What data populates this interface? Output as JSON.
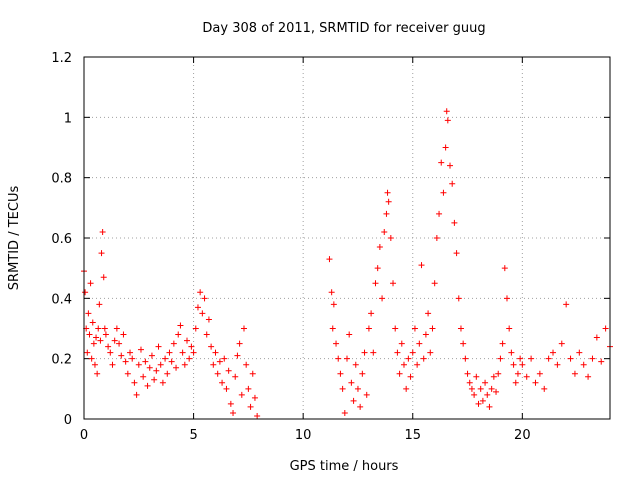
{
  "chart_data": {
    "type": "scatter",
    "title": "Day 308 of 2011, SRMTID for receiver guug",
    "xlabel": "GPS time / hours",
    "ylabel": "SRMTID / TECUs",
    "xlim": [
      0,
      24
    ],
    "ylim": [
      0,
      1.2
    ],
    "x_ticks": [
      0,
      5,
      10,
      15,
      20
    ],
    "x_tick_labels": [
      "0",
      "5",
      "10",
      "15",
      "20"
    ],
    "y_ticks": [
      0,
      0.2,
      0.4,
      0.6,
      0.8,
      1.0,
      1.2
    ],
    "y_tick_labels": [
      "0",
      "0.2",
      "0.4",
      "0.6",
      "0.8",
      "1",
      "1.2"
    ],
    "grid": true,
    "marker": "+",
    "color": "#ff0000",
    "series": [
      {
        "name": "SRMTID",
        "points": [
          [
            0.0,
            0.49
          ],
          [
            0.05,
            0.42
          ],
          [
            0.1,
            0.3
          ],
          [
            0.15,
            0.22
          ],
          [
            0.2,
            0.35
          ],
          [
            0.25,
            0.28
          ],
          [
            0.3,
            0.45
          ],
          [
            0.35,
            0.2
          ],
          [
            0.4,
            0.32
          ],
          [
            0.45,
            0.25
          ],
          [
            0.5,
            0.18
          ],
          [
            0.55,
            0.27
          ],
          [
            0.6,
            0.15
          ],
          [
            0.65,
            0.3
          ],
          [
            0.7,
            0.38
          ],
          [
            0.75,
            0.26
          ],
          [
            0.8,
            0.55
          ],
          [
            0.85,
            0.62
          ],
          [
            0.9,
            0.47
          ],
          [
            0.95,
            0.3
          ],
          [
            1.0,
            0.28
          ],
          [
            1.1,
            0.24
          ],
          [
            1.2,
            0.22
          ],
          [
            1.3,
            0.18
          ],
          [
            1.4,
            0.26
          ],
          [
            1.5,
            0.3
          ],
          [
            1.6,
            0.25
          ],
          [
            1.7,
            0.21
          ],
          [
            1.8,
            0.28
          ],
          [
            1.9,
            0.19
          ],
          [
            2.0,
            0.15
          ],
          [
            2.1,
            0.22
          ],
          [
            2.2,
            0.2
          ],
          [
            2.3,
            0.12
          ],
          [
            2.4,
            0.08
          ],
          [
            2.5,
            0.18
          ],
          [
            2.6,
            0.23
          ],
          [
            2.7,
            0.14
          ],
          [
            2.8,
            0.19
          ],
          [
            2.9,
            0.11
          ],
          [
            3.0,
            0.17
          ],
          [
            3.1,
            0.21
          ],
          [
            3.2,
            0.13
          ],
          [
            3.3,
            0.16
          ],
          [
            3.4,
            0.24
          ],
          [
            3.5,
            0.18
          ],
          [
            3.6,
            0.12
          ],
          [
            3.7,
            0.2
          ],
          [
            3.8,
            0.15
          ],
          [
            3.9,
            0.22
          ],
          [
            4.0,
            0.19
          ],
          [
            4.1,
            0.25
          ],
          [
            4.2,
            0.17
          ],
          [
            4.3,
            0.28
          ],
          [
            4.4,
            0.31
          ],
          [
            4.5,
            0.22
          ],
          [
            4.6,
            0.18
          ],
          [
            4.7,
            0.26
          ],
          [
            4.8,
            0.2
          ],
          [
            4.9,
            0.24
          ],
          [
            5.0,
            0.22
          ],
          [
            5.1,
            0.3
          ],
          [
            5.2,
            0.37
          ],
          [
            5.3,
            0.42
          ],
          [
            5.4,
            0.35
          ],
          [
            5.5,
            0.4
          ],
          [
            5.6,
            0.28
          ],
          [
            5.7,
            0.33
          ],
          [
            5.8,
            0.24
          ],
          [
            5.9,
            0.18
          ],
          [
            6.0,
            0.22
          ],
          [
            6.1,
            0.15
          ],
          [
            6.2,
            0.19
          ],
          [
            6.3,
            0.12
          ],
          [
            6.4,
            0.2
          ],
          [
            6.5,
            0.1
          ],
          [
            6.6,
            0.16
          ],
          [
            6.7,
            0.05
          ],
          [
            6.8,
            0.02
          ],
          [
            6.9,
            0.14
          ],
          [
            7.0,
            0.21
          ],
          [
            7.1,
            0.25
          ],
          [
            7.2,
            0.08
          ],
          [
            7.3,
            0.3
          ],
          [
            7.4,
            0.18
          ],
          [
            7.5,
            0.1
          ],
          [
            7.6,
            0.04
          ],
          [
            7.7,
            0.15
          ],
          [
            7.8,
            0.07
          ],
          [
            7.9,
            0.01
          ],
          [
            11.2,
            0.53
          ],
          [
            11.3,
            0.42
          ],
          [
            11.35,
            0.3
          ],
          [
            11.4,
            0.38
          ],
          [
            11.5,
            0.25
          ],
          [
            11.6,
            0.2
          ],
          [
            11.7,
            0.15
          ],
          [
            11.8,
            0.1
          ],
          [
            11.9,
            0.02
          ],
          [
            12.0,
            0.2
          ],
          [
            12.1,
            0.28
          ],
          [
            12.2,
            0.12
          ],
          [
            12.3,
            0.06
          ],
          [
            12.4,
            0.18
          ],
          [
            12.5,
            0.1
          ],
          [
            12.6,
            0.04
          ],
          [
            12.7,
            0.15
          ],
          [
            12.8,
            0.22
          ],
          [
            12.9,
            0.08
          ],
          [
            13.0,
            0.3
          ],
          [
            13.1,
            0.35
          ],
          [
            13.2,
            0.22
          ],
          [
            13.3,
            0.45
          ],
          [
            13.4,
            0.5
          ],
          [
            13.5,
            0.57
          ],
          [
            13.6,
            0.4
          ],
          [
            13.7,
            0.62
          ],
          [
            13.8,
            0.68
          ],
          [
            13.85,
            0.75
          ],
          [
            13.9,
            0.72
          ],
          [
            14.0,
            0.6
          ],
          [
            14.1,
            0.45
          ],
          [
            14.2,
            0.3
          ],
          [
            14.3,
            0.22
          ],
          [
            14.4,
            0.15
          ],
          [
            14.5,
            0.25
          ],
          [
            14.6,
            0.18
          ],
          [
            14.7,
            0.1
          ],
          [
            14.8,
            0.2
          ],
          [
            14.9,
            0.14
          ],
          [
            15.0,
            0.22
          ],
          [
            15.1,
            0.3
          ],
          [
            15.2,
            0.18
          ],
          [
            15.3,
            0.25
          ],
          [
            15.4,
            0.51
          ],
          [
            15.5,
            0.2
          ],
          [
            15.6,
            0.28
          ],
          [
            15.7,
            0.35
          ],
          [
            15.8,
            0.22
          ],
          [
            15.9,
            0.3
          ],
          [
            16.0,
            0.45
          ],
          [
            16.1,
            0.6
          ],
          [
            16.2,
            0.68
          ],
          [
            16.3,
            0.85
          ],
          [
            16.4,
            0.75
          ],
          [
            16.5,
            0.9
          ],
          [
            16.55,
            1.02
          ],
          [
            16.6,
            0.99
          ],
          [
            16.7,
            0.84
          ],
          [
            16.8,
            0.78
          ],
          [
            16.9,
            0.65
          ],
          [
            17.0,
            0.55
          ],
          [
            17.1,
            0.4
          ],
          [
            17.2,
            0.3
          ],
          [
            17.3,
            0.25
          ],
          [
            17.4,
            0.2
          ],
          [
            17.5,
            0.15
          ],
          [
            17.6,
            0.12
          ],
          [
            17.7,
            0.1
          ],
          [
            17.8,
            0.08
          ],
          [
            17.9,
            0.14
          ],
          [
            18.0,
            0.05
          ],
          [
            18.1,
            0.1
          ],
          [
            18.2,
            0.06
          ],
          [
            18.3,
            0.12
          ],
          [
            18.4,
            0.08
          ],
          [
            18.5,
            0.04
          ],
          [
            18.6,
            0.1
          ],
          [
            18.7,
            0.14
          ],
          [
            18.8,
            0.09
          ],
          [
            18.9,
            0.15
          ],
          [
            19.0,
            0.2
          ],
          [
            19.1,
            0.25
          ],
          [
            19.2,
            0.5
          ],
          [
            19.3,
            0.4
          ],
          [
            19.4,
            0.3
          ],
          [
            19.5,
            0.22
          ],
          [
            19.6,
            0.18
          ],
          [
            19.7,
            0.12
          ],
          [
            19.8,
            0.15
          ],
          [
            19.9,
            0.2
          ],
          [
            20.0,
            0.18
          ],
          [
            20.2,
            0.14
          ],
          [
            20.4,
            0.2
          ],
          [
            20.6,
            0.12
          ],
          [
            20.8,
            0.15
          ],
          [
            21.0,
            0.1
          ],
          [
            21.2,
            0.2
          ],
          [
            21.4,
            0.22
          ],
          [
            21.6,
            0.18
          ],
          [
            21.8,
            0.25
          ],
          [
            22.0,
            0.38
          ],
          [
            22.2,
            0.2
          ],
          [
            22.4,
            0.15
          ],
          [
            22.6,
            0.22
          ],
          [
            22.8,
            0.18
          ],
          [
            23.0,
            0.14
          ],
          [
            23.2,
            0.2
          ],
          [
            23.4,
            0.27
          ],
          [
            23.6,
            0.19
          ],
          [
            23.8,
            0.3
          ],
          [
            24.0,
            0.24
          ]
        ]
      }
    ]
  }
}
